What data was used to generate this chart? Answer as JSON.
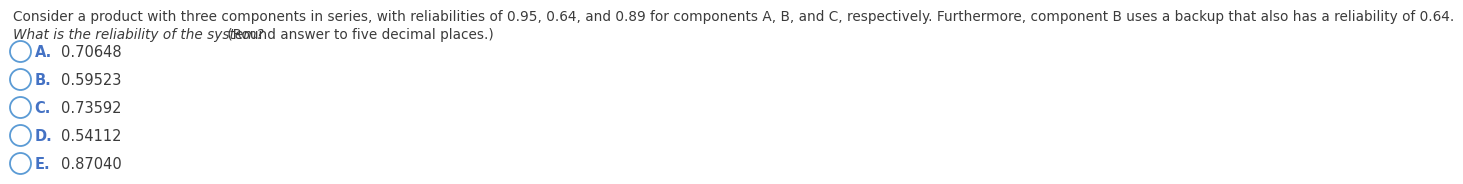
{
  "question_line1": "Consider a product with three components in series, with reliabilities of 0.95, 0.64, and 0.89 for components A, B, and C, respectively. Furthermore, component B uses a backup that also has a reliability of 0.64.",
  "question_line2_italic": "What is the reliability of the system?",
  "question_line2_normal": " (Round answer to five decimal places.)",
  "options": [
    {
      "label": "A.",
      "value": "0.70648"
    },
    {
      "label": "B.",
      "value": "0.59523"
    },
    {
      "label": "C.",
      "value": "0.73592"
    },
    {
      "label": "D.",
      "value": "0.54112"
    },
    {
      "label": "E.",
      "value": "0.87040"
    }
  ],
  "circle_color": "#5b9bd5",
  "label_color": "#4472c4",
  "text_color": "#3b3b3b",
  "value_color": "#3b3b3b",
  "bg_color": "#ffffff",
  "font_size_question": 9.8,
  "font_size_options": 10.5,
  "fig_width": 12.0,
  "fig_height": 1.94
}
